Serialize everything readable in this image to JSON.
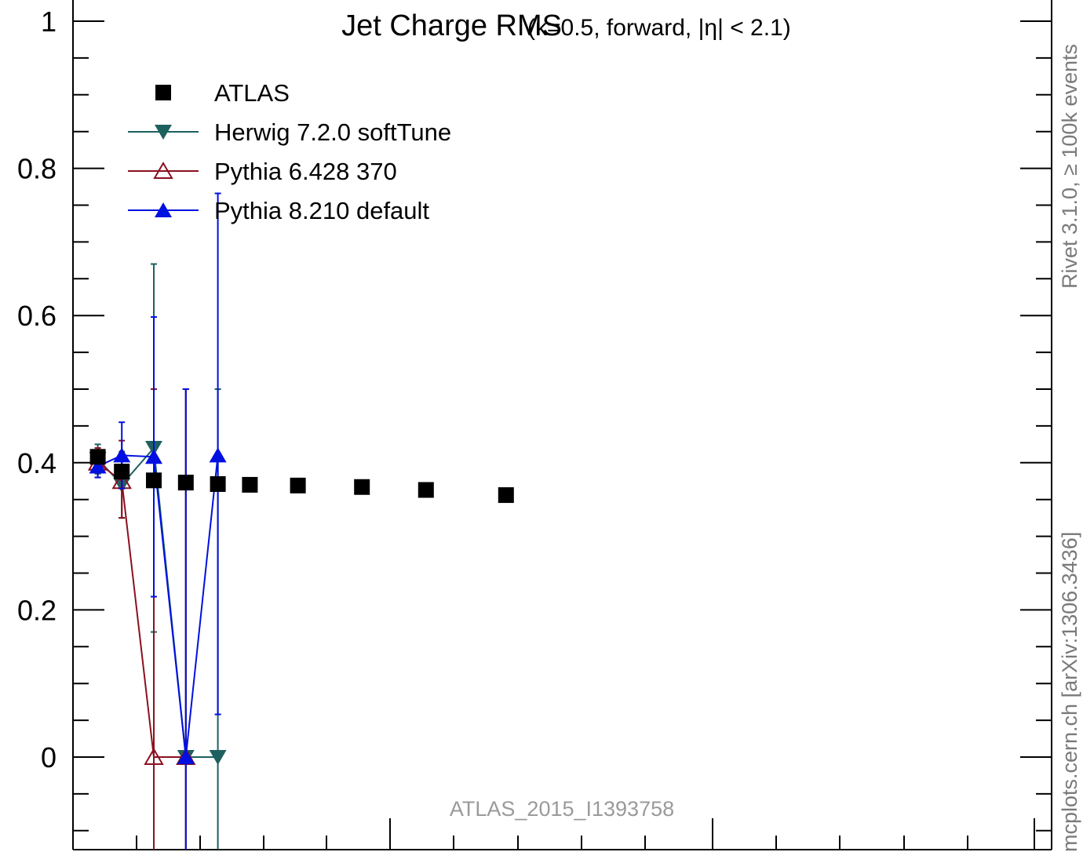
{
  "chart_data": {
    "type": "scatter",
    "title": "Jet Charge RMS",
    "subtitle": "(κ=0.5, forward, |η| < 2.1)",
    "ylim": [
      -0.11,
      1.0
    ],
    "xlim": [
      0,
      100
    ],
    "y_ticks": [
      {
        "value": 0,
        "label": "0"
      },
      {
        "value": 0.2,
        "label": "0.2"
      },
      {
        "value": 0.4,
        "label": "0.4"
      },
      {
        "value": 0.6,
        "label": "0.6"
      },
      {
        "value": 0.8,
        "label": "0.8"
      },
      {
        "value": 1.0,
        "label": "1"
      }
    ],
    "grid": false,
    "legend_placement": "top-left",
    "analysis_tag": "ATLAS_2015_I1393758",
    "side_label_top": "Rivet 3.1.0, ≥ 100k events",
    "side_label_bottom": "mcplots.cern.ch [arXiv:1306.3436]",
    "series": [
      {
        "name": "ATLAS",
        "color": "#000000",
        "marker": "square-filled",
        "line": false,
        "x": [
          1.5,
          3.0,
          5.0,
          7.0,
          9.0,
          11.0,
          14.0,
          18.0,
          22.0,
          27.0
        ],
        "y": [
          0.408,
          0.388,
          0.376,
          0.373,
          0.371,
          0.37,
          0.369,
          0.367,
          0.363,
          0.356
        ],
        "yerr": [
          0.005,
          0.005,
          0.004,
          0.004,
          0.004,
          0.004,
          0.004,
          0.004,
          0.004,
          0.004
        ]
      },
      {
        "name": "Herwig 7.2.0 softTune",
        "color": "#1e6060",
        "marker": "triangle-down-filled",
        "line": true,
        "x": [
          1.5,
          3.0,
          5.0,
          7.0,
          9.0
        ],
        "y": [
          0.405,
          0.37,
          0.42,
          0.0,
          0.0
        ],
        "err_low": [
          0.02,
          0.045,
          0.25,
          0.5,
          0.5
        ],
        "err_high": [
          0.02,
          0.045,
          0.25,
          0.5,
          0.5
        ]
      },
      {
        "name": "Pythia 6.428 370",
        "color": "#8b1020",
        "marker": "triangle-up-open",
        "line": true,
        "x": [
          1.5,
          3.0,
          5.0,
          7.0
        ],
        "y": [
          0.4,
          0.375,
          0.0,
          0.0
        ],
        "err_low": [
          0.02,
          0.05,
          0.5,
          0.5
        ],
        "err_high": [
          0.02,
          0.055,
          0.5,
          0.5
        ]
      },
      {
        "name": "Pythia 8.210 default",
        "color": "#0010e0",
        "marker": "triangle-up-filled",
        "line": true,
        "x": [
          1.5,
          3.0,
          5.0,
          7.0,
          9.0
        ],
        "y": [
          0.395,
          0.41,
          0.408,
          0.0,
          0.41
        ],
        "err_low": [
          0.015,
          0.045,
          0.19,
          0.5,
          0.352
        ],
        "err_high": [
          0.015,
          0.045,
          0.19,
          0.5,
          0.356
        ]
      }
    ]
  }
}
